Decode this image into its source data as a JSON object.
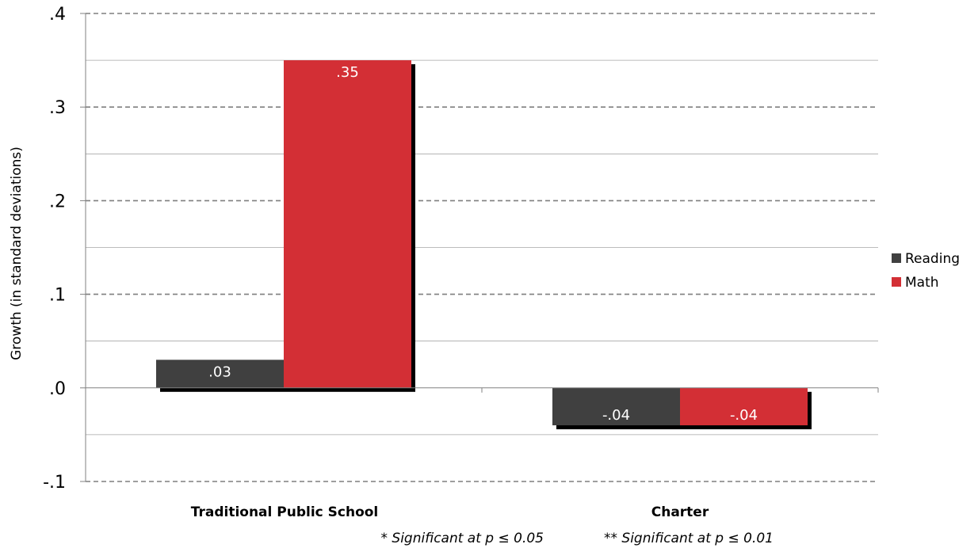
{
  "chart_data": {
    "type": "bar",
    "categories": [
      "Traditional Public School",
      "Charter"
    ],
    "series": [
      {
        "name": "Reading",
        "values": [
          0.03,
          -0.04
        ],
        "labels": [
          ".03",
          "-.04"
        ],
        "color": "#404040"
      },
      {
        "name": "Math",
        "values": [
          0.35,
          -0.04
        ],
        "labels": [
          ".35",
          "-.04"
        ],
        "color": "#d32f35"
      }
    ],
    "ylabel": "Growth (in standard deviations)",
    "ylim": [
      -0.1,
      0.4
    ],
    "yticks": [
      {
        "value": -0.1,
        "label": "-.1"
      },
      {
        "value": 0.0,
        "label": ".0"
      },
      {
        "value": 0.1,
        "label": ".1"
      },
      {
        "value": 0.2,
        "label": ".2"
      },
      {
        "value": 0.3,
        "label": ".3"
      },
      {
        "value": 0.4,
        "label": ".4"
      }
    ],
    "minor_gridlines": [
      -0.05,
      0.05,
      0.15,
      0.25,
      0.35
    ],
    "grid": true,
    "legend_position": "right",
    "footnotes": [
      "* Significant at p ≤ 0.05",
      "** Significant at p ≤ 0.01"
    ]
  }
}
